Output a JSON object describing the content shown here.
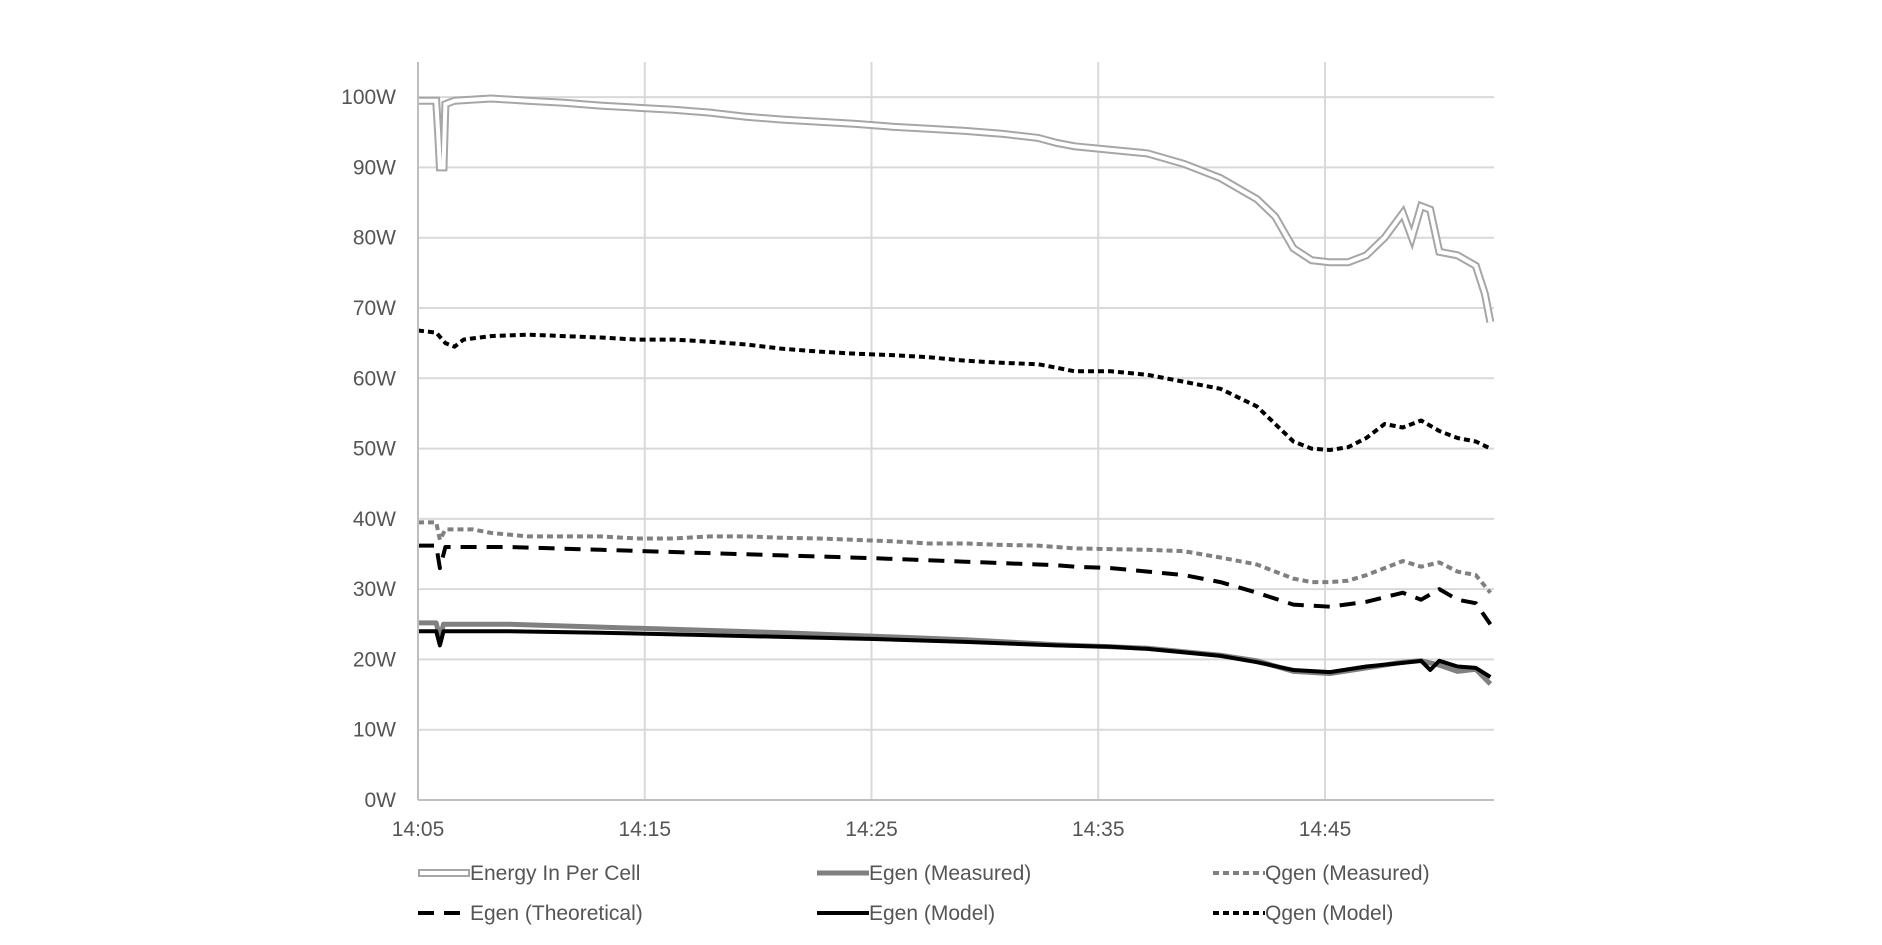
{
  "chart_data": {
    "type": "line",
    "title": "",
    "xlabel": "",
    "ylabel": "",
    "x_ticks": [
      "14:05",
      "14:15",
      "14:25",
      "14:35",
      "14:45"
    ],
    "x_range_minutes": [
      0,
      47.5
    ],
    "y_ticks": [
      "0W",
      "10W",
      "20W",
      "30W",
      "40W",
      "50W",
      "60W",
      "70W",
      "80W",
      "90W",
      "100W"
    ],
    "ylim": [
      0,
      105
    ],
    "grid": true,
    "legend_position": "bottom",
    "series": [
      {
        "name": "Energy In Per Cell",
        "color": "#a6a6a6",
        "style": "double-outline",
        "points": [
          [
            0,
            99.5
          ],
          [
            1,
            99.5
          ],
          [
            1.1,
            95
          ],
          [
            1.2,
            90
          ],
          [
            1.4,
            90
          ],
          [
            1.5,
            99
          ],
          [
            2,
            99.5
          ],
          [
            4,
            99.8
          ],
          [
            6,
            99.5
          ],
          [
            8,
            99.2
          ],
          [
            10,
            98.8
          ],
          [
            12,
            98.5
          ],
          [
            14,
            98.2
          ],
          [
            16,
            97.8
          ],
          [
            18,
            97.2
          ],
          [
            20,
            96.8
          ],
          [
            22,
            96.5
          ],
          [
            24,
            96.2
          ],
          [
            26,
            95.8
          ],
          [
            28,
            95.5
          ],
          [
            30,
            95.2
          ],
          [
            32,
            94.8
          ],
          [
            34,
            94.2
          ],
          [
            35,
            93.5
          ],
          [
            36,
            93
          ],
          [
            38,
            92.5
          ],
          [
            40,
            92
          ],
          [
            42,
            90.5
          ],
          [
            44,
            88.5
          ],
          [
            46,
            85.5
          ],
          [
            47,
            83
          ],
          [
            48,
            78.5
          ],
          [
            49,
            76.8
          ],
          [
            50,
            76.5
          ],
          [
            51,
            76.5
          ],
          [
            52,
            77.5
          ],
          [
            53,
            80
          ],
          [
            54,
            83.5
          ],
          [
            54.5,
            80
          ],
          [
            55,
            84.5
          ],
          [
            55.5,
            84
          ],
          [
            56,
            78
          ],
          [
            57,
            77.5
          ],
          [
            58,
            76
          ],
          [
            58.5,
            72
          ],
          [
            58.8,
            68
          ]
        ]
      },
      {
        "name": "Egen (Measured)",
        "color": "#808080",
        "style": "solid-thick",
        "points": [
          [
            0,
            25.2
          ],
          [
            1,
            25.2
          ],
          [
            1.2,
            23
          ],
          [
            1.4,
            25
          ],
          [
            5,
            25
          ],
          [
            10,
            24.6
          ],
          [
            15,
            24.2
          ],
          [
            20,
            23.8
          ],
          [
            25,
            23.3
          ],
          [
            30,
            22.8
          ],
          [
            35,
            22.1
          ],
          [
            38,
            21.8
          ],
          [
            40,
            21.6
          ],
          [
            42,
            21.1
          ],
          [
            44,
            20.6
          ],
          [
            46,
            19.8
          ],
          [
            48,
            18.3
          ],
          [
            50,
            18
          ],
          [
            52,
            18.8
          ],
          [
            54,
            19.6
          ],
          [
            55,
            19.8
          ],
          [
            56,
            19.2
          ],
          [
            57,
            18.3
          ],
          [
            58,
            18.6
          ],
          [
            58.8,
            16.5
          ]
        ]
      },
      {
        "name": "Qgen (Measured)",
        "color": "#808080",
        "style": "dotted",
        "points": [
          [
            0,
            39.5
          ],
          [
            1,
            39.5
          ],
          [
            1.2,
            37
          ],
          [
            1.5,
            38.5
          ],
          [
            3,
            38.5
          ],
          [
            4,
            38
          ],
          [
            6,
            37.5
          ],
          [
            8,
            37.5
          ],
          [
            10,
            37.5
          ],
          [
            12,
            37.2
          ],
          [
            14,
            37.2
          ],
          [
            16,
            37.5
          ],
          [
            18,
            37.5
          ],
          [
            20,
            37.3
          ],
          [
            22,
            37.2
          ],
          [
            24,
            37
          ],
          [
            26,
            36.8
          ],
          [
            28,
            36.5
          ],
          [
            30,
            36.5
          ],
          [
            32,
            36.3
          ],
          [
            34,
            36.2
          ],
          [
            35,
            36
          ],
          [
            36,
            35.8
          ],
          [
            38,
            35.7
          ],
          [
            40,
            35.6
          ],
          [
            42,
            35.4
          ],
          [
            44,
            34.5
          ],
          [
            46,
            33.5
          ],
          [
            47,
            32.5
          ],
          [
            48,
            31.5
          ],
          [
            49,
            31
          ],
          [
            50,
            31
          ],
          [
            51,
            31.2
          ],
          [
            52,
            32
          ],
          [
            53,
            33
          ],
          [
            54,
            34
          ],
          [
            55,
            33.2
          ],
          [
            56,
            33.8
          ],
          [
            57,
            32.5
          ],
          [
            58,
            32
          ],
          [
            58.8,
            29.5
          ]
        ]
      },
      {
        "name": "Egen (Theoretical)",
        "color": "#000000",
        "style": "dashed",
        "points": [
          [
            0,
            36.2
          ],
          [
            1,
            36.2
          ],
          [
            1.2,
            33
          ],
          [
            1.5,
            36
          ],
          [
            5,
            36
          ],
          [
            10,
            35.6
          ],
          [
            15,
            35.2
          ],
          [
            20,
            34.8
          ],
          [
            25,
            34.4
          ],
          [
            30,
            33.9
          ],
          [
            35,
            33.4
          ],
          [
            36,
            33.2
          ],
          [
            38,
            33
          ],
          [
            40,
            32.5
          ],
          [
            42,
            32
          ],
          [
            44,
            31
          ],
          [
            46,
            29.5
          ],
          [
            48,
            27.8
          ],
          [
            50,
            27.5
          ],
          [
            52,
            28.2
          ],
          [
            54,
            29.5
          ],
          [
            55,
            28.5
          ],
          [
            56,
            30
          ],
          [
            57,
            28.5
          ],
          [
            58,
            28
          ],
          [
            58.8,
            25
          ]
        ]
      },
      {
        "name": "Egen (Model)",
        "color": "#000000",
        "style": "solid",
        "points": [
          [
            0,
            24
          ],
          [
            1,
            24
          ],
          [
            1.2,
            22
          ],
          [
            1.4,
            24
          ],
          [
            5,
            24
          ],
          [
            10,
            23.8
          ],
          [
            15,
            23.5
          ],
          [
            20,
            23.2
          ],
          [
            25,
            22.9
          ],
          [
            30,
            22.5
          ],
          [
            35,
            22
          ],
          [
            38,
            21.8
          ],
          [
            40,
            21.5
          ],
          [
            42,
            21
          ],
          [
            44,
            20.5
          ],
          [
            46,
            19.6
          ],
          [
            48,
            18.5
          ],
          [
            50,
            18.2
          ],
          [
            52,
            19
          ],
          [
            54,
            19.5
          ],
          [
            55,
            19.8
          ],
          [
            55.5,
            18.5
          ],
          [
            56,
            19.8
          ],
          [
            57,
            19
          ],
          [
            58,
            18.8
          ],
          [
            58.8,
            17.5
          ]
        ]
      },
      {
        "name": "Qgen (Model)",
        "color": "#000000",
        "style": "dotted",
        "points": [
          [
            0,
            66.8
          ],
          [
            1,
            66.5
          ],
          [
            1.5,
            65
          ],
          [
            2,
            64.5
          ],
          [
            2.5,
            65.5
          ],
          [
            4,
            66
          ],
          [
            6,
            66.2
          ],
          [
            8,
            66
          ],
          [
            10,
            65.8
          ],
          [
            12,
            65.5
          ],
          [
            14,
            65.5
          ],
          [
            16,
            65.2
          ],
          [
            18,
            64.8
          ],
          [
            20,
            64.2
          ],
          [
            22,
            63.8
          ],
          [
            24,
            63.5
          ],
          [
            26,
            63.3
          ],
          [
            28,
            63
          ],
          [
            30,
            62.5
          ],
          [
            32,
            62.2
          ],
          [
            34,
            62
          ],
          [
            35,
            61.5
          ],
          [
            36,
            61
          ],
          [
            38,
            61
          ],
          [
            40,
            60.5
          ],
          [
            42,
            59.5
          ],
          [
            44,
            58.5
          ],
          [
            46,
            56
          ],
          [
            47,
            53.5
          ],
          [
            48,
            51
          ],
          [
            49,
            50
          ],
          [
            50,
            49.8
          ],
          [
            51,
            50.2
          ],
          [
            52,
            51.5
          ],
          [
            53,
            53.5
          ],
          [
            54,
            53
          ],
          [
            55,
            54
          ],
          [
            56,
            52.5
          ],
          [
            57,
            51.5
          ],
          [
            58,
            51
          ],
          [
            58.8,
            50
          ]
        ]
      }
    ]
  }
}
